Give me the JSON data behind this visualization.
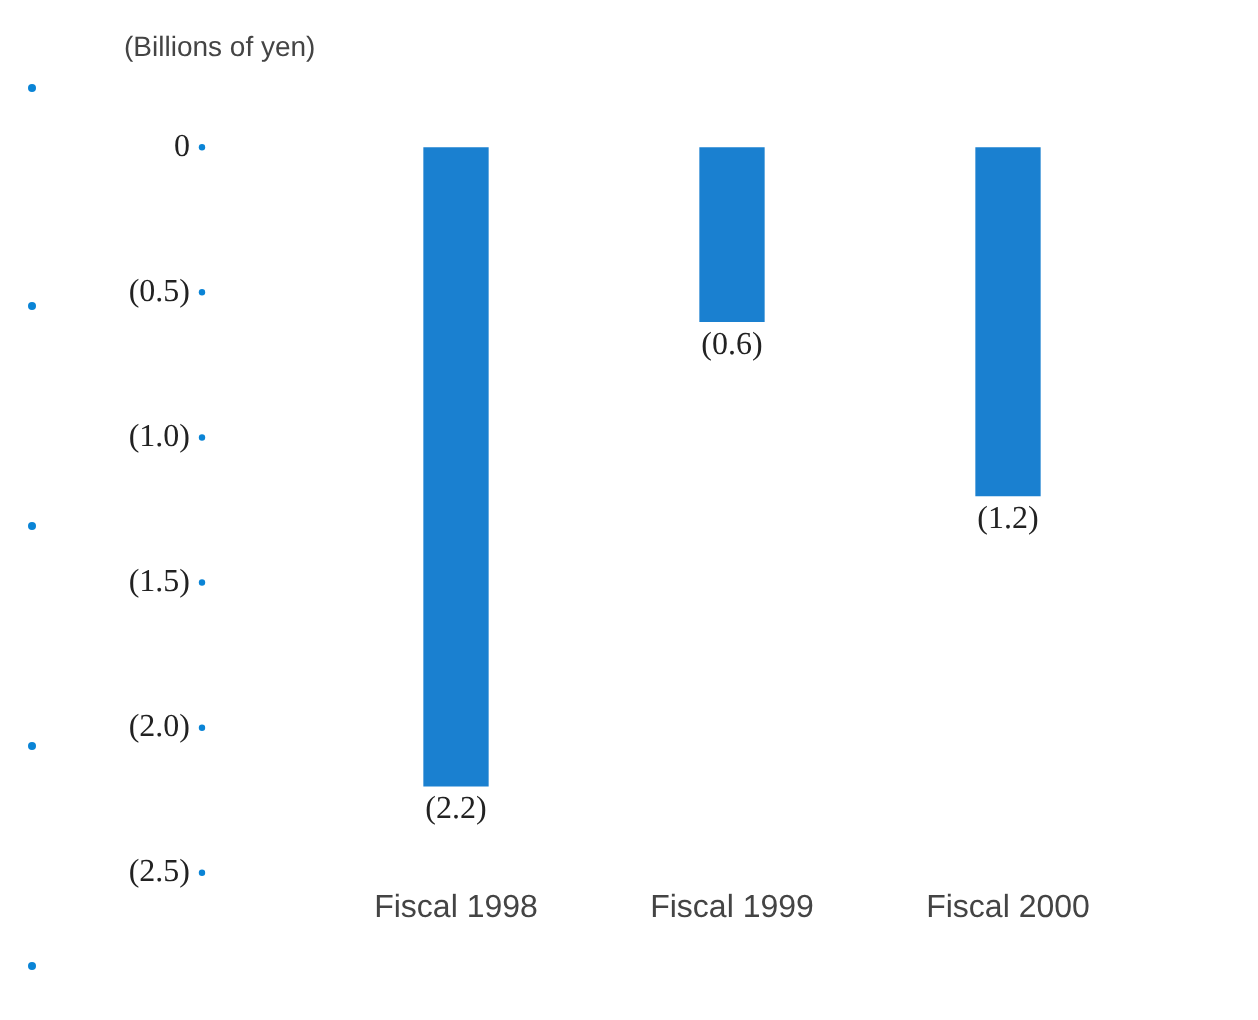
{
  "chart_data": {
    "type": "bar",
    "ylabel": "(Billions of yen)",
    "categories": [
      "Fiscal 1998",
      "Fiscal 1999",
      "Fiscal 2000"
    ],
    "values": [
      -2.2,
      -0.6,
      -1.2
    ],
    "value_labels": [
      "(2.2)",
      "(0.6)",
      "(1.2)"
    ],
    "color": "#1a80d0",
    "ylim": [
      -2.5,
      0
    ],
    "yticks": [
      {
        "value": 0,
        "label": "0"
      },
      {
        "value": -0.5,
        "label": "(0.5)"
      },
      {
        "value": -1,
        "label": "(1.0)"
      },
      {
        "value": -1.5,
        "label": "(1.5)"
      },
      {
        "value": -2,
        "label": "(2.0)"
      },
      {
        "value": -2.5,
        "label": "(2.5)"
      }
    ],
    "grid": false,
    "legend": false
  }
}
